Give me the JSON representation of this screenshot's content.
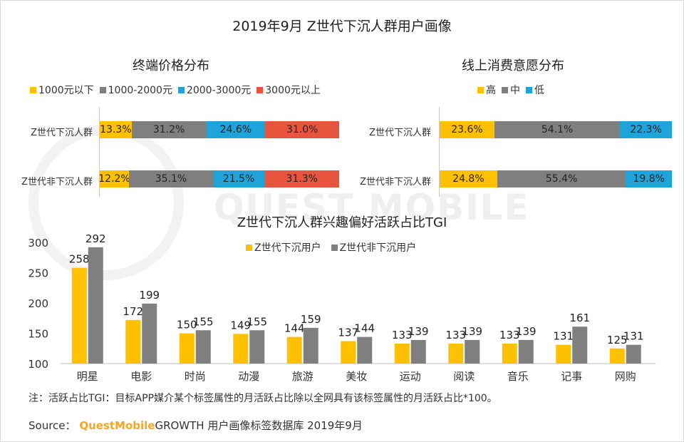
{
  "title": "2019年9月 Z世代下沉人群用户画像",
  "colors": {
    "yellow": "#FFC000",
    "gray": "#7F7F7F",
    "blue": "#1FA3D8",
    "red": "#E8553E"
  },
  "price_panel": {
    "title": "终端价格分布",
    "legend": [
      "1000元以下",
      "1000-2000元",
      "2000-3000元",
      "3000元以上"
    ],
    "rows": [
      {
        "label": "Z世代下沉人群",
        "values": [
          "13.3%",
          "31.2%",
          "24.6%",
          "31.0%"
        ]
      },
      {
        "label": "Z世代非下沉人群",
        "values": [
          "12.2%",
          "35.1%",
          "21.5%",
          "31.3%"
        ]
      }
    ]
  },
  "consume_panel": {
    "title": "线上消费意愿分布",
    "legend": [
      "高",
      "中",
      "低"
    ],
    "rows": [
      {
        "label": "Z世代下沉人群",
        "values": [
          "23.6%",
          "54.1%",
          "22.3%"
        ]
      },
      {
        "label": "Z世代非下沉人群",
        "values": [
          "24.8%",
          "55.4%",
          "19.8%"
        ]
      }
    ]
  },
  "tgi_panel": {
    "title": "Z世代下沉人群兴趣偏好活跃占比TGI",
    "legend": [
      "Z世代下沉用户",
      "Z世代非下沉用户"
    ]
  },
  "chart_data": [
    {
      "type": "bar",
      "orientation": "horizontal",
      "stacked": true,
      "title": "终端价格分布",
      "categories": [
        "Z世代下沉人群",
        "Z世代非下沉人群"
      ],
      "series": [
        {
          "name": "1000元以下",
          "values": [
            13.3,
            12.2
          ],
          "color": "#FFC000"
        },
        {
          "name": "1000-2000元",
          "values": [
            31.2,
            35.1
          ],
          "color": "#7F7F7F"
        },
        {
          "name": "2000-3000元",
          "values": [
            24.6,
            21.5
          ],
          "color": "#1FA3D8"
        },
        {
          "name": "3000元以上",
          "values": [
            31.0,
            31.3
          ],
          "color": "#E8553E"
        }
      ],
      "legend": "top"
    },
    {
      "type": "bar",
      "orientation": "horizontal",
      "stacked": true,
      "title": "线上消费意愿分布",
      "categories": [
        "Z世代下沉人群",
        "Z世代非下沉人群"
      ],
      "series": [
        {
          "name": "高",
          "values": [
            23.6,
            24.8
          ],
          "color": "#FFC000"
        },
        {
          "name": "中",
          "values": [
            54.1,
            55.4
          ],
          "color": "#7F7F7F"
        },
        {
          "name": "低",
          "values": [
            22.3,
            19.8
          ],
          "color": "#1FA3D8"
        }
      ],
      "legend": "top"
    },
    {
      "type": "bar",
      "title": "Z世代下沉人群兴趣偏好活跃占比TGI",
      "categories": [
        "明星",
        "电影",
        "时尚",
        "动漫",
        "旅游",
        "美妆",
        "运动",
        "阅读",
        "音乐",
        "记事",
        "网购"
      ],
      "series": [
        {
          "name": "Z世代下沉用户",
          "values": [
            258,
            172,
            150,
            149,
            144,
            137,
            133,
            133,
            133,
            131,
            125
          ],
          "color": "#FFC000"
        },
        {
          "name": "Z世代非下沉用户",
          "values": [
            292,
            199,
            155,
            155,
            159,
            144,
            139,
            139,
            139,
            161,
            131
          ],
          "color": "#7F7F7F"
        }
      ],
      "yticks": [
        100,
        150,
        200,
        250,
        300
      ],
      "ylim": [
        100,
        300
      ],
      "grid": false,
      "legend": "top"
    }
  ],
  "note": "注：活跃占比TGI：目标APP媒介某个标签属性的月活跃占比除以全网具有该标签属性的月活跃占比*100。",
  "source": {
    "prefix": "Source：",
    "brand": "QuestMobile",
    "rest": "GROWTH 用户画像标签数据库  2019年9月"
  },
  "watermark": "QUEST MOBILE"
}
